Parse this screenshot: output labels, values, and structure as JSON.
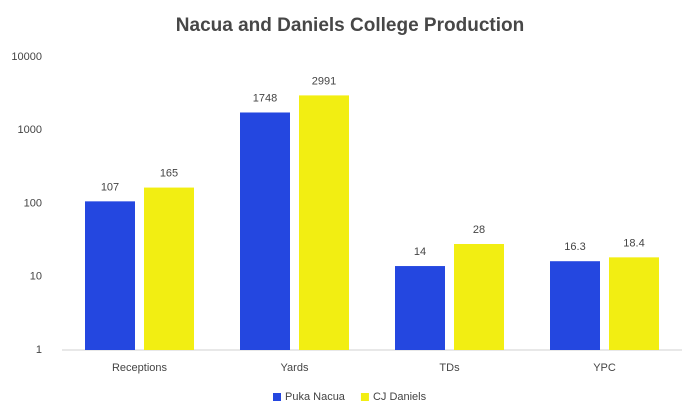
{
  "chart_data": {
    "type": "bar",
    "title": "Nacua and Daniels College Production",
    "categories": [
      "Receptions",
      "Yards",
      "TDs",
      "YPC"
    ],
    "series": [
      {
        "name": "Puka Nacua",
        "color": "#2447e0",
        "values": [
          107,
          1748,
          14,
          16.3
        ]
      },
      {
        "name": "CJ Daniels",
        "color": "#f2ee12",
        "values": [
          165,
          2991,
          28,
          18.4
        ]
      }
    ],
    "ylim": [
      1,
      10000
    ],
    "yticks": [
      1,
      10,
      100,
      1000,
      10000
    ],
    "log_scale": true,
    "grid": false,
    "legend": "bottom"
  }
}
